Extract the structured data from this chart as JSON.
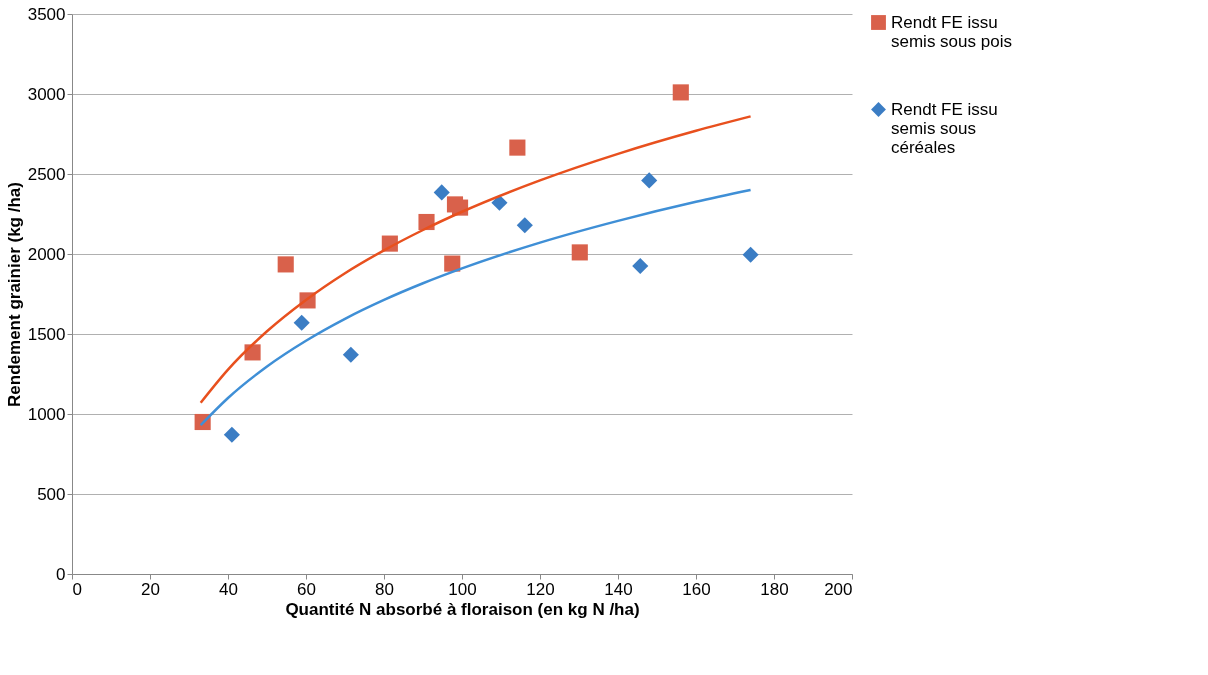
{
  "chart_data": {
    "type": "scatter",
    "xlabel": "Quantité N absorbé à floraison (en kg N /ha)",
    "ylabel": "Rendement grainier (kg /ha)",
    "xlim": [
      0,
      200
    ],
    "xticks": [
      0,
      20,
      40,
      60,
      80,
      100,
      120,
      140,
      160,
      180,
      200
    ],
    "ylim": [
      0,
      3500
    ],
    "yticks": [
      0,
      500,
      1000,
      1500,
      2000,
      2500,
      3000,
      3500
    ],
    "grid": "y",
    "legend": "right",
    "series": [
      {
        "name": "Rendt FE issu semis sous pois",
        "color": "#d9614b",
        "marker": "square",
        "x": [
          33.5,
          46.3,
          54.8,
          60.4,
          81.5,
          90.9,
          97.5,
          98.2,
          99.5,
          114.2,
          130.2,
          156.1
        ],
        "values": [
          950,
          1385,
          1935,
          1710,
          2065,
          2200,
          1940,
          2310,
          2290,
          2665,
          2010,
          3010
        ]
      },
      {
        "name": "Rendt FE issu semis sous céréales",
        "color": "#3b7dc4",
        "marker": "diamond",
        "x": [
          41,
          58.9,
          71.5,
          94.8,
          109.6,
          116.1,
          145.7,
          148,
          174
        ],
        "values": [
          870,
          1570,
          1370,
          2385,
          2320,
          2180,
          1925,
          2460,
          1995
        ]
      },
      {
        "type": "line",
        "color": "#e8501e",
        "x": [
          33,
          40,
          50,
          60,
          70,
          80,
          90,
          100,
          120,
          140,
          160,
          174
        ],
        "values": [
          1070,
          1277,
          1517,
          1713,
          1880,
          2023,
          2150,
          2264,
          2460,
          2626,
          2770,
          2860
        ]
      },
      {
        "type": "line",
        "color": "#3f8fd6",
        "x": [
          33,
          40,
          50,
          60,
          70,
          80,
          90,
          100,
          120,
          140,
          160,
          174
        ],
        "values": [
          930,
          1100,
          1297,
          1458,
          1595,
          1713,
          1817,
          1910,
          2071,
          2207,
          2326,
          2400
        ]
      }
    ]
  }
}
